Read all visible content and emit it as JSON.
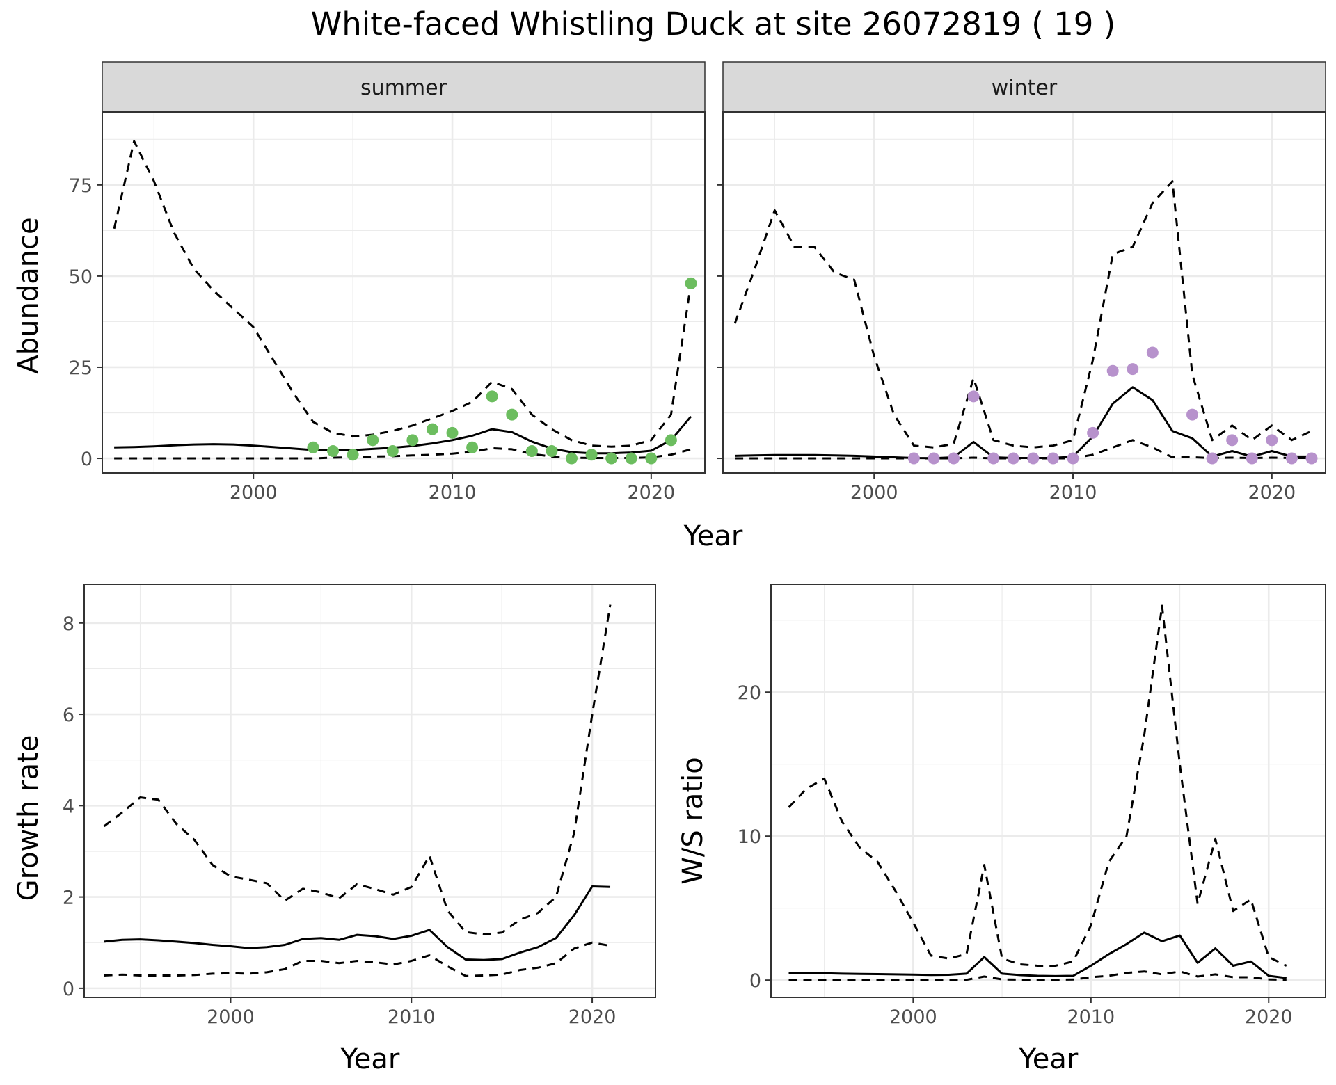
{
  "title": "White-faced Whistling Duck at site 26072819 ( 19 )",
  "colors": {
    "summer_points": "#6cbd5f",
    "winter_points": "#b792cc",
    "grid": "#ebebeb",
    "strip_bg": "#d9d9d9"
  },
  "chart_data": [
    {
      "id": "abundance-summer",
      "type": "line",
      "facet": "summer",
      "xlabel": "Year",
      "ylabel": "Abundance",
      "xlim": [
        1992.4,
        2022.7
      ],
      "ylim": [
        -4,
        95
      ],
      "xticks": [
        2000,
        2010,
        2020
      ],
      "yticks": [
        0,
        25,
        50,
        75
      ],
      "x": [
        1993,
        1994,
        1995,
        1996,
        1997,
        1998,
        1999,
        2000,
        2001,
        2002,
        2003,
        2004,
        2005,
        2006,
        2007,
        2008,
        2009,
        2010,
        2011,
        2012,
        2013,
        2014,
        2015,
        2016,
        2017,
        2018,
        2019,
        2020,
        2021,
        2022
      ],
      "series": [
        {
          "role": "estimate",
          "style": "solid",
          "values": [
            3.0,
            3.1,
            3.3,
            3.6,
            3.8,
            3.9,
            3.8,
            3.5,
            3.1,
            2.7,
            2.3,
            2.2,
            2.3,
            2.6,
            2.9,
            3.4,
            4.1,
            5.0,
            6.2,
            8.0,
            7.2,
            4.6,
            2.7,
            1.7,
            1.4,
            1.4,
            1.6,
            2.1,
            5.0,
            11.5
          ]
        },
        {
          "role": "upper",
          "style": "dashed",
          "values": [
            63,
            87,
            76,
            62,
            52,
            46,
            41,
            36,
            27,
            18,
            10,
            7,
            6,
            6.5,
            7.5,
            9,
            11,
            13,
            15.5,
            21,
            19,
            12,
            8,
            5,
            3.5,
            3.2,
            3.5,
            5,
            12,
            48
          ]
        },
        {
          "role": "lower",
          "style": "dashed",
          "values": [
            0,
            0,
            0,
            0,
            0,
            0,
            0,
            0,
            0,
            0,
            0,
            0.2,
            0.3,
            0.5,
            0.6,
            0.8,
            1.0,
            1.3,
            1.8,
            2.8,
            2.5,
            1.2,
            0.5,
            0.2,
            0.1,
            0.1,
            0.1,
            0.3,
            1.0,
            2.5
          ]
        }
      ],
      "points": {
        "x": [
          2003,
          2004,
          2005,
          2006,
          2007,
          2008,
          2009,
          2010,
          2011,
          2012,
          2013,
          2014,
          2015,
          2016,
          2017,
          2018,
          2019,
          2020,
          2021,
          2022
        ],
        "y": [
          3,
          2,
          1,
          5,
          2,
          5,
          8,
          7,
          3,
          17,
          12,
          2,
          2,
          0,
          1,
          0,
          0,
          0,
          5,
          48
        ]
      }
    },
    {
      "id": "abundance-winter",
      "type": "line",
      "facet": "winter",
      "xlabel": "Year",
      "ylabel": "Abundance",
      "xlim": [
        1992.4,
        2022.7
      ],
      "ylim": [
        -4,
        95
      ],
      "xticks": [
        2000,
        2010,
        2020
      ],
      "yticks": [
        0,
        25,
        50,
        75
      ],
      "x": [
        1993,
        1994,
        1995,
        1996,
        1997,
        1998,
        1999,
        2000,
        2001,
        2002,
        2003,
        2004,
        2005,
        2006,
        2007,
        2008,
        2009,
        2010,
        2011,
        2012,
        2013,
        2014,
        2015,
        2016,
        2017,
        2018,
        2019,
        2020,
        2021,
        2022
      ],
      "series": [
        {
          "role": "estimate",
          "style": "solid",
          "values": [
            0.7,
            0.8,
            0.9,
            0.9,
            0.9,
            0.8,
            0.7,
            0.5,
            0.3,
            0.1,
            0.05,
            0.3,
            4.5,
            0.3,
            0.1,
            0.1,
            0.1,
            0.5,
            6,
            15,
            19.5,
            16,
            7.5,
            5.5,
            0.5,
            2,
            0.5,
            2,
            0.5,
            0.5
          ]
        },
        {
          "role": "upper",
          "style": "dashed",
          "values": [
            37,
            52,
            68,
            58,
            58,
            51,
            49,
            28,
            12,
            3.5,
            3,
            4,
            22,
            5,
            3.5,
            3,
            3.5,
            5,
            27,
            56,
            58,
            70,
            76,
            23,
            5,
            9,
            5,
            9,
            5,
            7.5
          ]
        },
        {
          "role": "lower",
          "style": "dashed",
          "values": [
            0,
            0,
            0,
            0,
            0,
            0,
            0,
            0,
            0,
            0,
            0,
            0,
            0.2,
            0,
            0,
            0,
            0,
            0,
            1.0,
            3.0,
            5.0,
            3.0,
            0.3,
            0.3,
            0.1,
            0.2,
            0.1,
            0.2,
            0.1,
            0.1
          ]
        }
      ],
      "points": {
        "x": [
          2002,
          2003,
          2004,
          2005,
          2006,
          2007,
          2008,
          2009,
          2010,
          2011,
          2012,
          2013,
          2014,
          2016,
          2017,
          2018,
          2019,
          2020,
          2021,
          2022
        ],
        "y": [
          0,
          0,
          0,
          17,
          0,
          0,
          0,
          0,
          0,
          7,
          24,
          24.5,
          29,
          12,
          0,
          5,
          0,
          5,
          0,
          0
        ]
      }
    },
    {
      "id": "growth-rate",
      "type": "line",
      "xlabel": "Year",
      "ylabel": "Growth rate",
      "xlim": [
        1991.9,
        2023.5
      ],
      "ylim": [
        -0.2,
        8.85
      ],
      "xticks": [
        2000,
        2010,
        2020
      ],
      "yticks": [
        0,
        2,
        4,
        6,
        8
      ],
      "x": [
        1993,
        1994,
        1995,
        1996,
        1997,
        1998,
        1999,
        2000,
        2001,
        2002,
        2003,
        2004,
        2005,
        2006,
        2007,
        2008,
        2009,
        2010,
        2011,
        2012,
        2013,
        2014,
        2015,
        2016,
        2017,
        2018,
        2019,
        2020,
        2021
      ],
      "series": [
        {
          "role": "estimate",
          "style": "solid",
          "values": [
            1.02,
            1.06,
            1.07,
            1.05,
            1.02,
            0.99,
            0.95,
            0.92,
            0.88,
            0.9,
            0.95,
            1.08,
            1.1,
            1.06,
            1.17,
            1.14,
            1.08,
            1.15,
            1.28,
            0.9,
            0.63,
            0.62,
            0.64,
            0.78,
            0.9,
            1.1,
            1.6,
            2.23,
            2.22
          ]
        },
        {
          "role": "upper",
          "style": "dashed",
          "values": [
            3.55,
            3.85,
            4.18,
            4.13,
            3.6,
            3.25,
            2.7,
            2.45,
            2.38,
            2.3,
            1.92,
            2.18,
            2.1,
            1.97,
            2.28,
            2.17,
            2.05,
            2.22,
            2.9,
            1.7,
            1.23,
            1.18,
            1.22,
            1.5,
            1.65,
            2.0,
            3.4,
            6.0,
            8.4
          ]
        },
        {
          "role": "lower",
          "style": "dashed",
          "values": [
            0.28,
            0.3,
            0.28,
            0.28,
            0.28,
            0.29,
            0.32,
            0.33,
            0.32,
            0.35,
            0.42,
            0.6,
            0.6,
            0.55,
            0.6,
            0.57,
            0.52,
            0.6,
            0.72,
            0.48,
            0.27,
            0.28,
            0.3,
            0.4,
            0.45,
            0.55,
            0.87,
            1.0,
            0.93
          ]
        }
      ]
    },
    {
      "id": "ws-ratio",
      "type": "line",
      "xlabel": "Year",
      "ylabel": "W/S ratio",
      "xlim": [
        1992.0,
        2023.2
      ],
      "ylim": [
        -1.2,
        27.5
      ],
      "xticks": [
        2000,
        2010,
        2020
      ],
      "yticks": [
        0,
        10,
        20
      ],
      "x": [
        1993,
        1994,
        1995,
        1996,
        1997,
        1998,
        1999,
        2000,
        2001,
        2002,
        2003,
        2004,
        2005,
        2006,
        2007,
        2008,
        2009,
        2010,
        2011,
        2012,
        2013,
        2014,
        2015,
        2016,
        2017,
        2018,
        2019,
        2020,
        2021
      ],
      "series": [
        {
          "role": "estimate",
          "style": "solid",
          "values": [
            0.5,
            0.5,
            0.48,
            0.45,
            0.43,
            0.42,
            0.4,
            0.38,
            0.36,
            0.37,
            0.45,
            1.6,
            0.45,
            0.35,
            0.3,
            0.28,
            0.3,
            1.0,
            1.8,
            2.5,
            3.3,
            2.7,
            3.1,
            1.2,
            2.2,
            1.0,
            1.3,
            0.3,
            0.15
          ]
        },
        {
          "role": "upper",
          "style": "dashed",
          "values": [
            12,
            13.3,
            14,
            11,
            9.2,
            8.2,
            6.2,
            4,
            1.7,
            1.5,
            1.8,
            8,
            1.5,
            1.1,
            1.0,
            1.0,
            1.3,
            3.8,
            8.2,
            10,
            17,
            26,
            15,
            5.3,
            9.8,
            4.8,
            5.6,
            1.6,
            1.0
          ]
        },
        {
          "role": "lower",
          "style": "dashed",
          "values": [
            0.01,
            0.01,
            0.01,
            0.01,
            0.01,
            0.01,
            0.01,
            0.01,
            0.01,
            0.01,
            0.02,
            0.25,
            0.05,
            0.03,
            0.03,
            0.03,
            0.04,
            0.2,
            0.3,
            0.5,
            0.6,
            0.4,
            0.6,
            0.25,
            0.4,
            0.2,
            0.2,
            0.05,
            0.02
          ]
        }
      ]
    }
  ]
}
